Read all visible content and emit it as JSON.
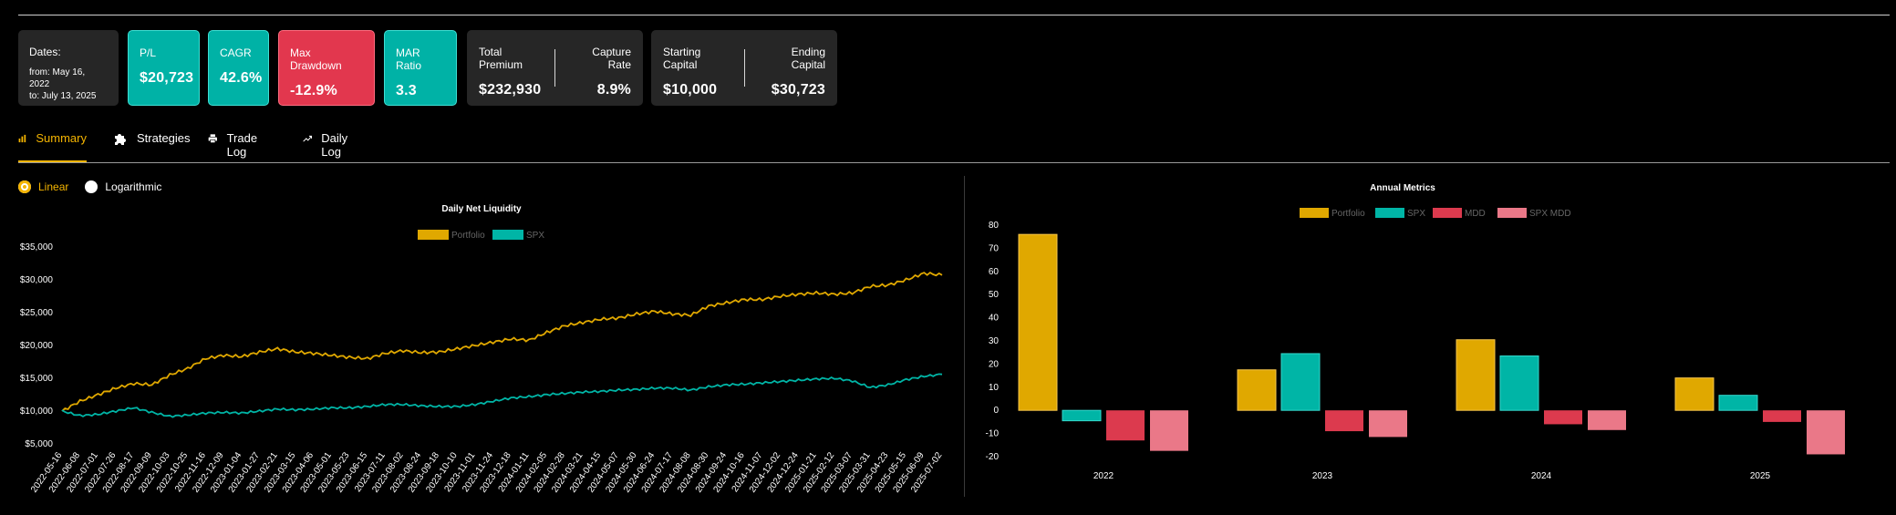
{
  "header": {
    "dates_label": "Dates:",
    "from": "from: May 16, 2022",
    "to": "to: July 13, 2025",
    "pl_label": "P/L",
    "pl_value": "$20,723",
    "cagr_label": "CAGR",
    "cagr_value": "42.6%",
    "mdd_label": "Max Drawdown",
    "mdd_value": "-12.9%",
    "mar_label": "MAR Ratio",
    "mar_value": "3.3",
    "premium_label": "Total Premium",
    "premium_value": "$232,930",
    "capture_label": "Capture Rate",
    "capture_value": "8.9%",
    "start_label": "Starting Capital",
    "start_value": "$10,000",
    "end_label": "Ending Capital",
    "end_value": "$30,723"
  },
  "tabs": [
    {
      "label": "Summary",
      "icon": "bar-chart-icon",
      "active": true
    },
    {
      "label": "Strategies",
      "icon": "puzzle-icon",
      "active": false
    },
    {
      "label": "Trade Log",
      "icon": "printer-icon",
      "active": false
    },
    {
      "label": "Daily Log",
      "icon": "trend-icon",
      "active": false
    }
  ],
  "scale": {
    "linear": "Linear",
    "log": "Logarithmic",
    "selected": "linear"
  },
  "colors": {
    "portfolio": "#e0a800",
    "spx": "#00b5a6",
    "mdd": "#dc3a4e",
    "spx_mdd": "#ea7888",
    "accent": "#f4b400"
  },
  "chart_data": [
    {
      "type": "line",
      "title": "Daily Net Liquidity",
      "legend": [
        "Portfolio",
        "SPX"
      ],
      "y_ticks": [
        "$5,000",
        "$10,000",
        "$15,000",
        "$20,000",
        "$25,000",
        "$30,000",
        "$35,000"
      ],
      "ylim": [
        5000,
        35000
      ],
      "x_ticks": [
        "2022-05-16",
        "2022-06-08",
        "2022-07-01",
        "2022-07-26",
        "2022-08-17",
        "2022-09-09",
        "2022-10-03",
        "2022-10-25",
        "2022-11-16",
        "2022-12-09",
        "2023-01-04",
        "2023-01-27",
        "2023-02-21",
        "2023-03-15",
        "2023-04-06",
        "2023-05-01",
        "2023-05-23",
        "2023-06-15",
        "2023-07-11",
        "2023-08-02",
        "2023-08-24",
        "2023-09-18",
        "2023-10-10",
        "2023-11-01",
        "2023-11-24",
        "2023-12-18",
        "2024-01-11",
        "2024-02-05",
        "2024-02-28",
        "2024-03-21",
        "2024-04-15",
        "2024-05-07",
        "2024-05-30",
        "2024-06-24",
        "2024-07-17",
        "2024-08-08",
        "2024-08-30",
        "2024-09-24",
        "2024-10-16",
        "2024-11-07",
        "2024-12-02",
        "2024-12-24",
        "2025-01-21",
        "2025-02-12",
        "2025-03-07",
        "2025-03-31",
        "2025-04-23",
        "2025-05-15",
        "2025-06-09",
        "2025-07-02"
      ],
      "series": [
        {
          "name": "Portfolio",
          "values": [
            10000,
            11500,
            12500,
            13500,
            14200,
            14000,
            15500,
            16500,
            18000,
            18500,
            18300,
            19000,
            19500,
            19000,
            18800,
            18500,
            18200,
            18000,
            18800,
            19200,
            18900,
            19000,
            19500,
            20000,
            20500,
            21000,
            20800,
            22000,
            23000,
            23500,
            24000,
            24200,
            24800,
            25200,
            24800,
            24600,
            26000,
            26500,
            27000,
            27000,
            27500,
            27800,
            28000,
            27800,
            28000,
            29000,
            29200,
            30000,
            31000,
            30723
          ]
        },
        {
          "name": "SPX",
          "values": [
            10000,
            9300,
            9500,
            10000,
            10500,
            9800,
            9200,
            9400,
            9700,
            9800,
            9700,
            10000,
            10300,
            10200,
            10300,
            10500,
            10500,
            10700,
            11000,
            11000,
            10800,
            10700,
            10700,
            11000,
            11500,
            12000,
            12200,
            12500,
            12700,
            12900,
            13000,
            13200,
            13300,
            13500,
            13500,
            13200,
            13700,
            14000,
            14100,
            14300,
            14500,
            14700,
            14900,
            15000,
            14600,
            13600,
            14000,
            14800,
            15300,
            15600
          ]
        }
      ]
    },
    {
      "type": "bar",
      "title": "Annual Metrics",
      "categories": [
        "2022",
        "2023",
        "2024",
        "2025"
      ],
      "y_ticks": [
        "80",
        "70",
        "60",
        "50",
        "40",
        "30",
        "20",
        "10",
        "0",
        "-10",
        "-20"
      ],
      "ylim": [
        -20,
        80
      ],
      "series": [
        {
          "name": "Portfolio",
          "values": [
            76,
            17.5,
            30.5,
            14
          ]
        },
        {
          "name": "SPX",
          "values": [
            -4.5,
            24.5,
            23.5,
            6.5
          ]
        },
        {
          "name": "MDD",
          "values": [
            -13,
            -9,
            -6,
            -5
          ]
        },
        {
          "name": "SPX MDD",
          "values": [
            -17.5,
            -11.5,
            -8.5,
            -19
          ]
        }
      ]
    }
  ]
}
